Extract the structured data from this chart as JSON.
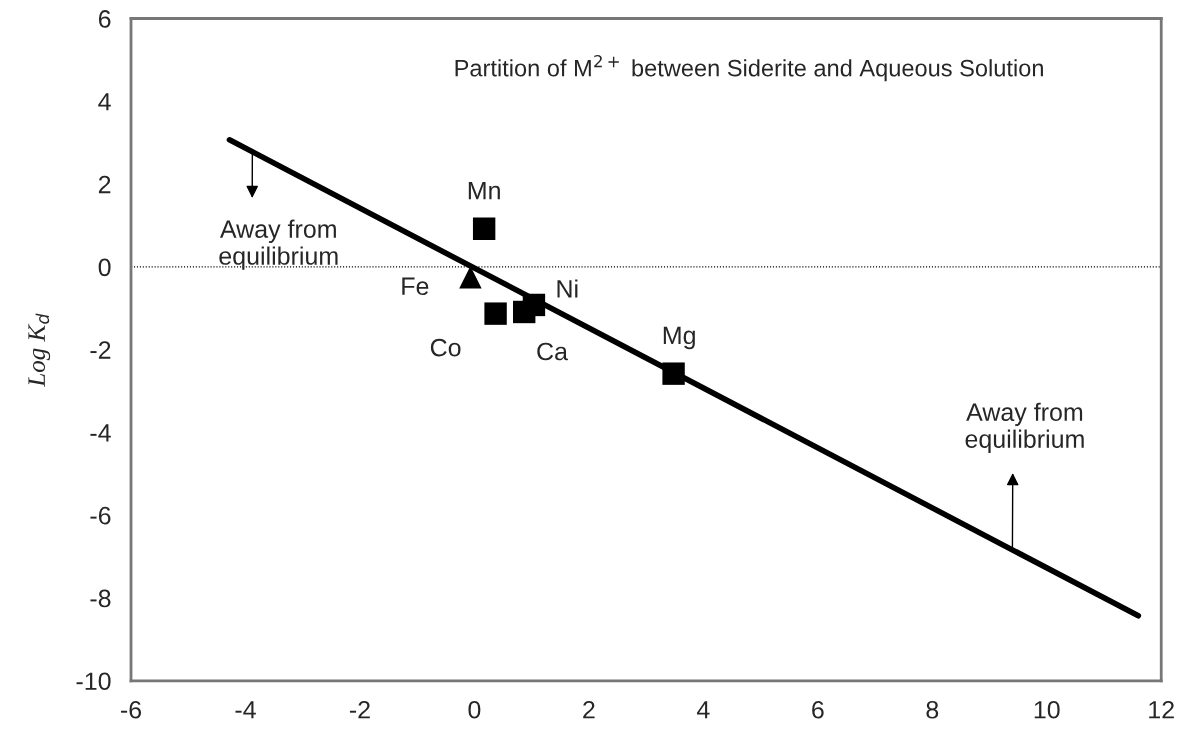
{
  "chart_data": {
    "type": "scatter",
    "title": "Partition of M$^{2+}$ between Siderite and Aqueous Solution",
    "ylabel": "Log K$_{d}$",
    "xlim": [
      -6,
      12
    ],
    "xticks": [
      -6,
      -4,
      -2,
      0,
      2,
      4,
      6,
      8,
      10,
      12
    ],
    "ylim": [
      -10,
      6
    ],
    "yticks": [
      -10,
      -8,
      -6,
      -4,
      -2,
      0,
      2,
      4,
      6
    ],
    "grid": false,
    "legend": false,
    "series": [
      {
        "type": "line",
        "color": "#000000",
        "marker": "none",
        "line_style": "solid",
        "x": [
          -4.28,
          11.6
        ],
        "values": [
          3.07,
          -8.43
        ]
      },
      {
        "color": "#000000",
        "marker": "square",
        "x": [
          0.17,
          0.37,
          0.87,
          1.04,
          3.48
        ],
        "values": [
          0.92,
          -1.13,
          -1.09,
          -0.92,
          -2.58
        ]
      },
      {
        "color": "#000000",
        "marker": "triangle",
        "x": [
          -0.07
        ],
        "values": [
          -0.25
        ]
      }
    ],
    "ref_lines": [
      {
        "axis": "y",
        "value": 0,
        "color": "#000000",
        "line_style": "dotted"
      }
    ],
    "annotations": [
      {
        "text": "Mn",
        "x": 0.17,
        "y": 0.92
      },
      {
        "text": "Fe",
        "x": -0.07,
        "y": -0.25
      },
      {
        "text": "Co",
        "x": 0.37,
        "y": -1.13
      },
      {
        "text": "Ca",
        "x": 0.87,
        "y": -1.09
      },
      {
        "text": "Ni",
        "x": 1.04,
        "y": -0.92
      },
      {
        "text": "Mg",
        "x": 3.48,
        "y": -2.58
      },
      {
        "text": "Away from\nequilibrium",
        "x": -3.88,
        "y": 2.75
      },
      {
        "text": "Away from\nequilibrium",
        "x": 9.4,
        "y": -6.84
      }
    ]
  }
}
